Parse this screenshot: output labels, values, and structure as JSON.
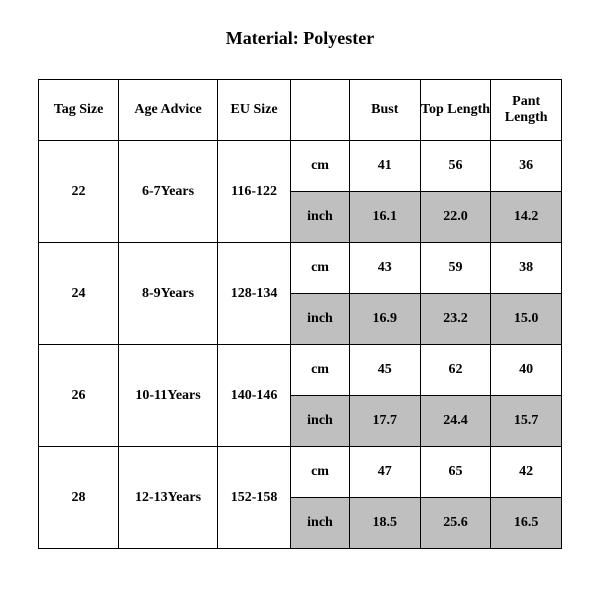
{
  "title": "Material: Polyester",
  "table": {
    "columns": [
      "Tag Size",
      "Age Advice",
      "EU Size",
      "",
      "Bust",
      "Top Length",
      "Pant Length"
    ],
    "unit_cm": "cm",
    "unit_inch": "inch",
    "shade_color": "#bfbfbf",
    "border_color": "#000000",
    "font_family": "Times New Roman",
    "header_fontsize": 14,
    "cell_fontsize": 14,
    "rows": [
      {
        "tag": "22",
        "age": "6-7Years",
        "eu": "116-122",
        "cm": {
          "bust": "41",
          "top": "56",
          "pant": "36"
        },
        "inch": {
          "bust": "16.1",
          "top": "22.0",
          "pant": "14.2"
        }
      },
      {
        "tag": "24",
        "age": "8-9Years",
        "eu": "128-134",
        "cm": {
          "bust": "43",
          "top": "59",
          "pant": "38"
        },
        "inch": {
          "bust": "16.9",
          "top": "23.2",
          "pant": "15.0"
        }
      },
      {
        "tag": "26",
        "age": "10-11Years",
        "eu": "140-146",
        "cm": {
          "bust": "45",
          "top": "62",
          "pant": "40"
        },
        "inch": {
          "bust": "17.7",
          "top": "24.4",
          "pant": "15.7"
        }
      },
      {
        "tag": "28",
        "age": "12-13Years",
        "eu": "152-158",
        "cm": {
          "bust": "47",
          "top": "65",
          "pant": "42"
        },
        "inch": {
          "bust": "18.5",
          "top": "25.6",
          "pant": "16.5"
        }
      }
    ]
  }
}
